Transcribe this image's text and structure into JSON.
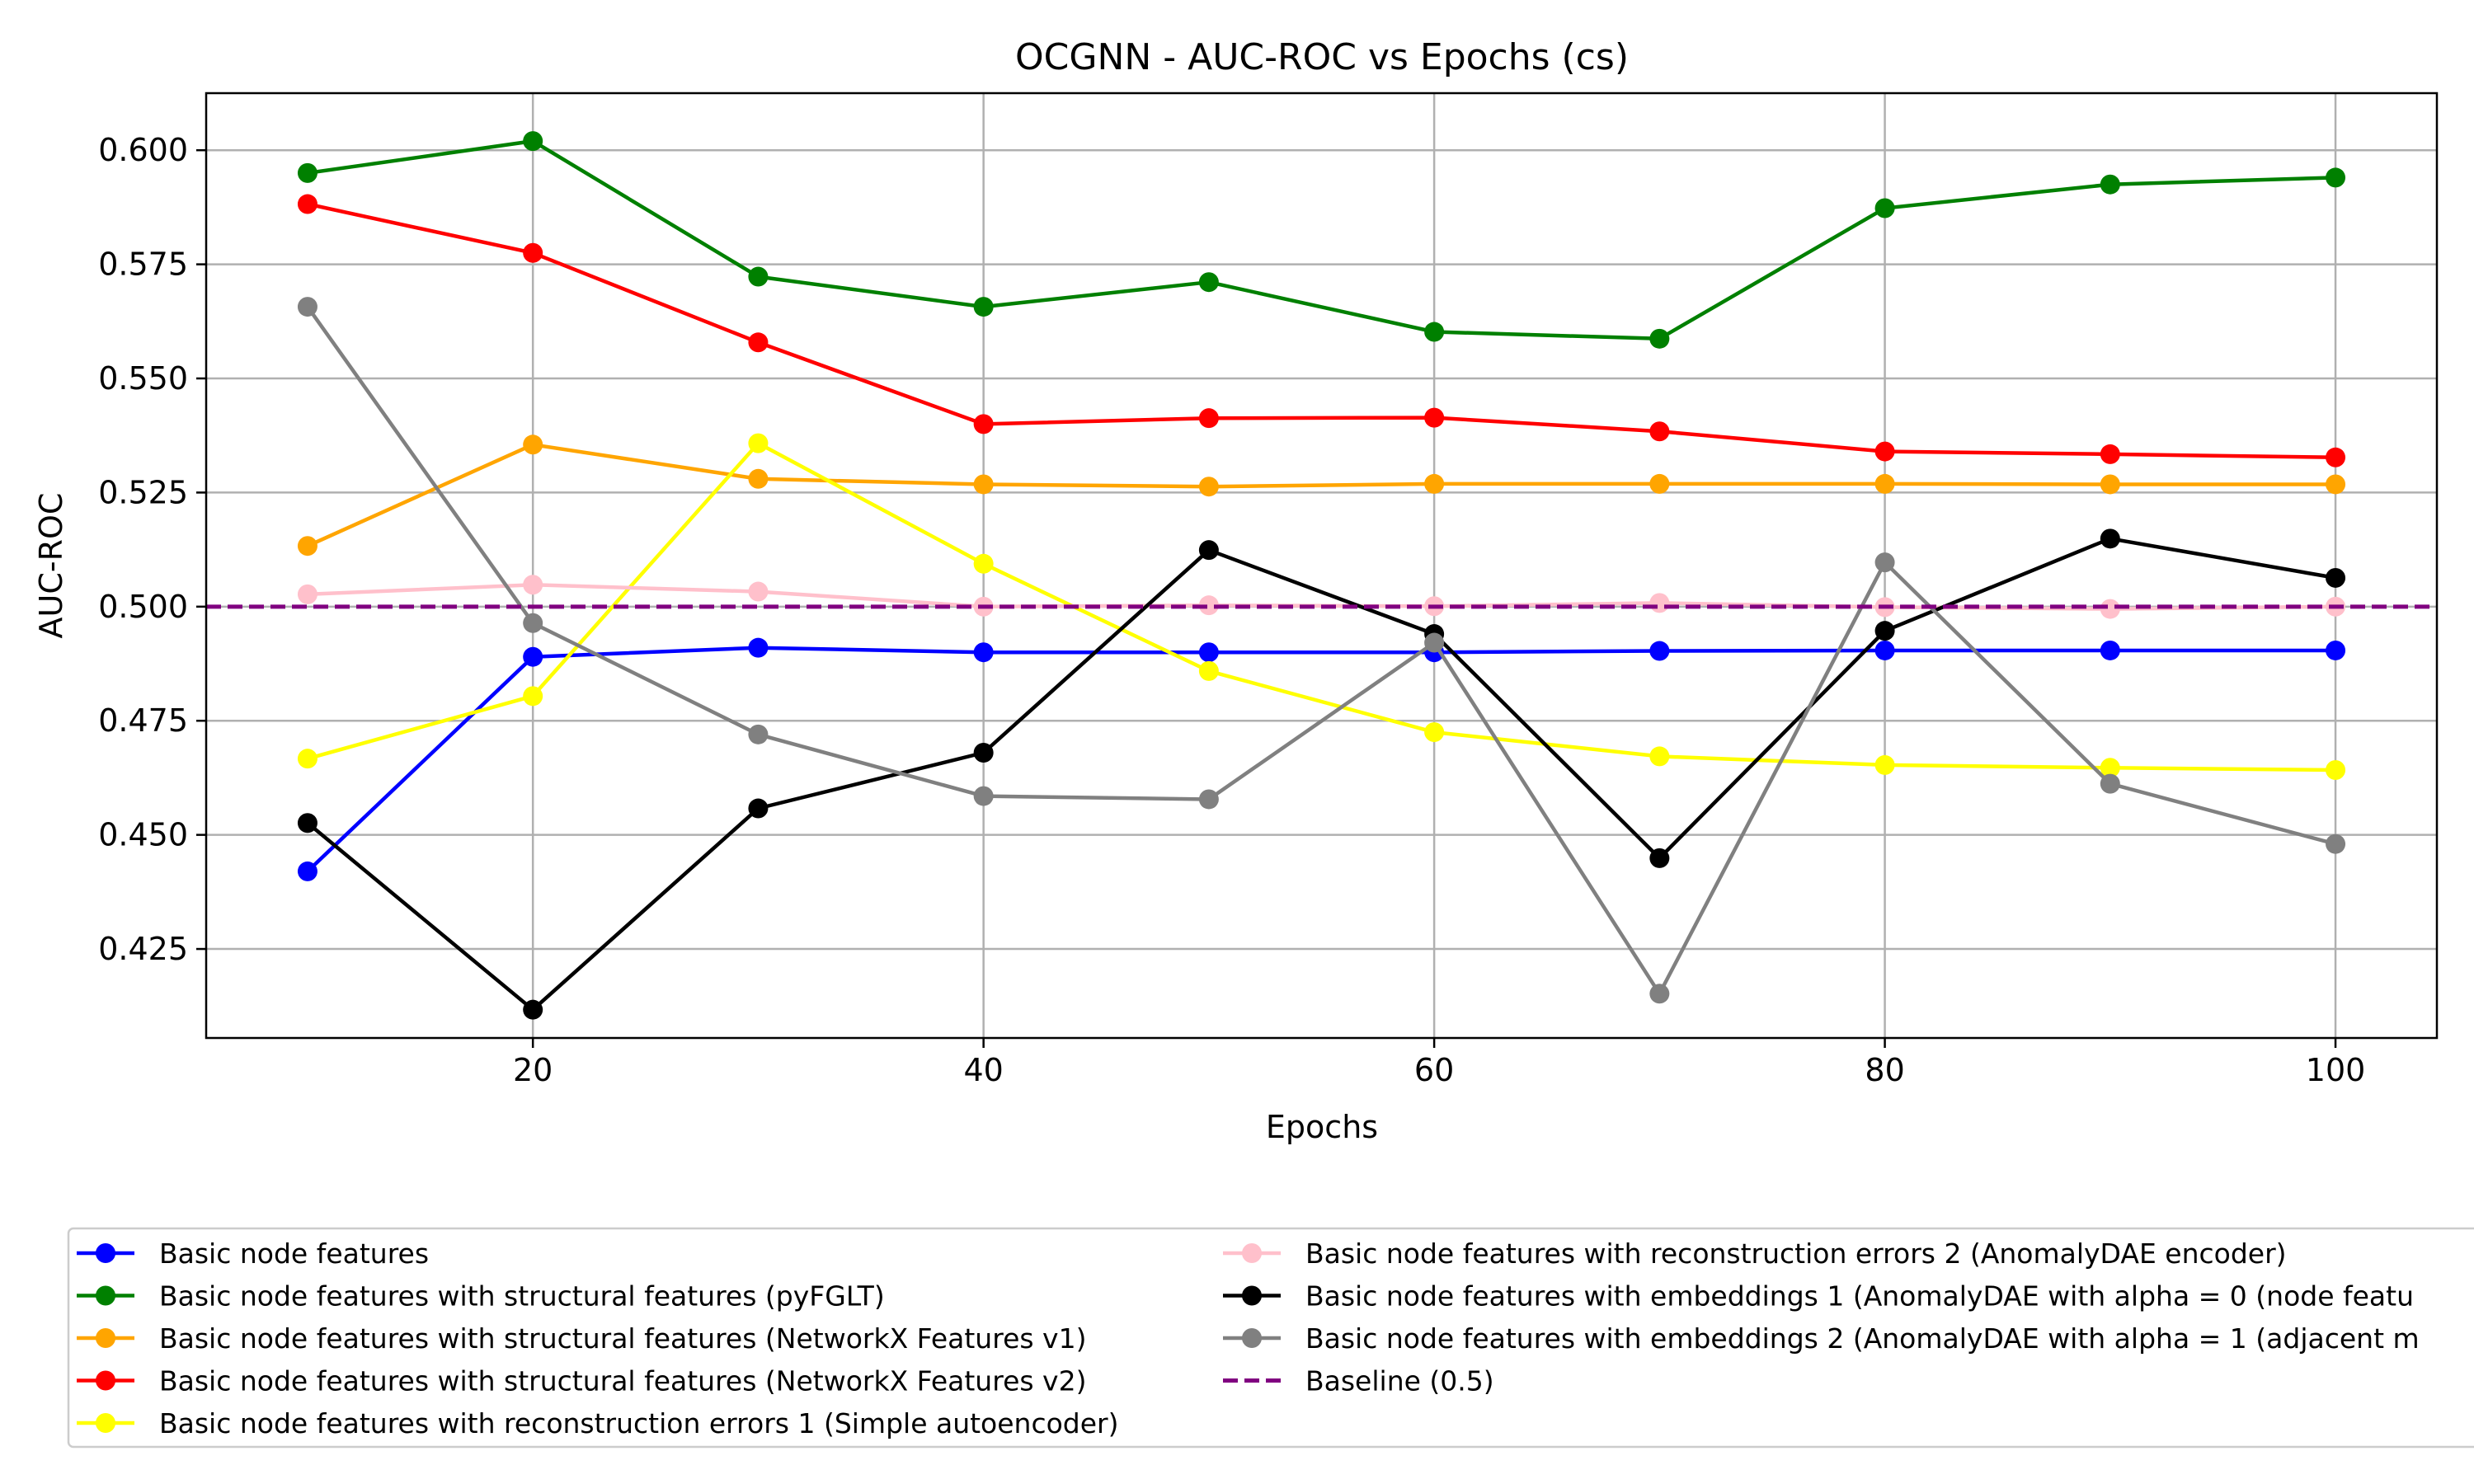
{
  "chart_data": {
    "type": "line",
    "title": "OCGNN - AUC-ROC vs Epochs (cs)",
    "xlabel": "Epochs",
    "ylabel": "AUC-ROC",
    "x": [
      10,
      20,
      30,
      40,
      50,
      60,
      70,
      80,
      90,
      100
    ],
    "xlim": [
      5.5,
      104.5
    ],
    "ylim": [
      0.4055,
      0.6125
    ],
    "xticks": [
      20,
      40,
      60,
      80,
      100
    ],
    "yticks": [
      0.425,
      0.45,
      0.475,
      0.5,
      0.525,
      0.55,
      0.575,
      0.6
    ],
    "xtick_labels": [
      "20",
      "40",
      "60",
      "80",
      "100"
    ],
    "ytick_labels": [
      "0.425",
      "0.450",
      "0.475",
      "0.500",
      "0.525",
      "0.550",
      "0.575",
      "0.600"
    ],
    "grid": true,
    "legend_placement": "below chart",
    "series": [
      {
        "name": "Basic node features",
        "color": "#0000ff",
        "values": [
          0.442,
          0.489,
          0.491,
          0.49,
          0.49,
          0.49,
          0.4903,
          0.4904,
          0.4904,
          0.4904
        ]
      },
      {
        "name": "Basic node features with structural features (pyFGLT)",
        "color": "#008000",
        "values": [
          0.595,
          0.602,
          0.5723,
          0.5657,
          0.5711,
          0.5602,
          0.5587,
          0.5873,
          0.5925,
          0.594
        ]
      },
      {
        "name": "Basic node features with structural features (NetworkX Features v1)",
        "color": "#ffa500",
        "values": [
          0.5133,
          0.5355,
          0.528,
          0.5268,
          0.5263,
          0.5269,
          0.5269,
          0.5269,
          0.5268,
          0.5268
        ]
      },
      {
        "name": "Basic node features with structural features (NetworkX Features v2)",
        "color": "#ff0000",
        "values": [
          0.5882,
          0.5775,
          0.5579,
          0.54,
          0.5413,
          0.5414,
          0.5384,
          0.534,
          0.5334,
          0.5327
        ]
      },
      {
        "name": "Basic node features with reconstruction errors 1 (Simple autoencoder)",
        "color": "#ffff00",
        "values": [
          0.4667,
          0.4804,
          0.5358,
          0.5094,
          0.4859,
          0.4725,
          0.4672,
          0.4653,
          0.4647,
          0.4642
        ]
      },
      {
        "name": "Basic node features with reconstruction errors 2 (AnomalyDAE encoder)",
        "color": "#ffc0cb",
        "values": [
          0.5027,
          0.5048,
          0.5033,
          0.5,
          0.5003,
          0.5001,
          0.5008,
          0.4999,
          0.4995,
          0.5
        ]
      },
      {
        "name": "Basic node features with embeddings 1 (AnomalyDAE with alpha = 0 (node featu",
        "color": "#000000",
        "values": [
          0.4526,
          0.4117,
          0.4558,
          0.468,
          0.5124,
          0.494,
          0.4449,
          0.4947,
          0.5149,
          0.5063
        ]
      },
      {
        "name": "Basic node features with embeddings 2 (AnomalyDAE with alpha = 1 (adjacent m",
        "color": "#808080",
        "values": [
          0.5657,
          0.4964,
          0.472,
          0.4585,
          0.4578,
          0.4921,
          0.4152,
          0.5097,
          0.4612,
          0.448
        ]
      },
      {
        "name": "Baseline (0.5)",
        "color": "#800080",
        "dashed": true,
        "baseline": 0.5
      }
    ]
  }
}
